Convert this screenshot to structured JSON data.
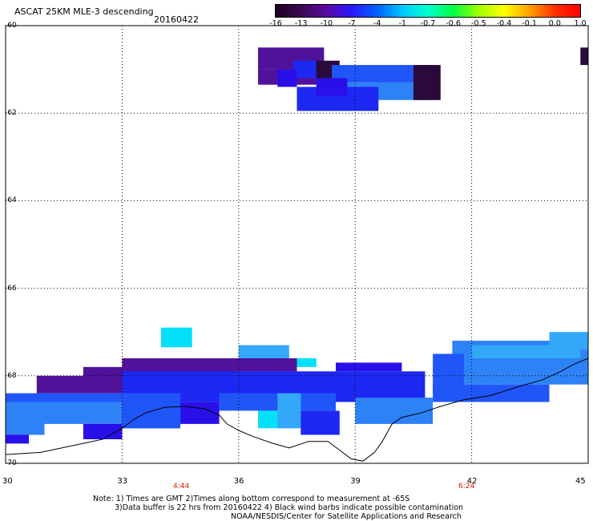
{
  "header": {
    "title": "ASCAT 25KM MLE-3 descending",
    "date": "20160422"
  },
  "colorbar": {
    "labels": [
      "-16",
      "-13",
      "-10",
      "-7",
      "-4",
      "-1",
      "-0.7",
      "-0.6",
      "-0.5",
      "-0.4",
      "-0.1",
      "0.0",
      "1.0"
    ],
    "colors": [
      "#1a0020",
      "#3a0a55",
      "#5a0aa0",
      "#2a18ff",
      "#0060ff",
      "#00c8ff",
      "#00ffd0",
      "#00ff40",
      "#a0ff00",
      "#ffff00",
      "#ffa000",
      "#ff3000",
      "#ff0000"
    ]
  },
  "axes": {
    "y_labels": [
      "-60",
      "-62",
      "-64",
      "-66",
      "-68",
      "-70"
    ],
    "x_labels": [
      "30",
      "33",
      "36",
      "39",
      "42",
      "45"
    ]
  },
  "times": [
    "4:44",
    "6:24"
  ],
  "notes": {
    "line1": "Note: 1) Times are GMT 2)Times along bottom correspond to measurement at -65S",
    "line2": "3)Data buffer is 22 hrs from 20160422 4) Black wind barbs indicate possible contamination",
    "line3": "NOAA/NESDIS/Center for Satellite Applications and Research"
  },
  "map_data": {
    "projection": "lon-lat grid",
    "lon_range": [
      30,
      45
    ],
    "lat_range": [
      -70,
      -60
    ],
    "palette": {
      "d": "#2a0a3c",
      "p": "#50129a",
      "v": "#2a10e8",
      "b": "#1d28f2",
      "m": "#2056f8",
      "s": "#2d82f6",
      "l": "#33a8f8",
      "c": "#05e0fa"
    },
    "regions": [
      {
        "lon": [
          36.5,
          38.2
        ],
        "lat": [
          -61.0,
          -60.5
        ],
        "v": "p"
      },
      {
        "lon": [
          36.5,
          38.6
        ],
        "lat": [
          -61.35,
          -61.0
        ],
        "v": "p"
      },
      {
        "lon": [
          37.4,
          38.0
        ],
        "lat": [
          -61.2,
          -60.8
        ],
        "v": "b"
      },
      {
        "lon": [
          37.0,
          37.5
        ],
        "lat": [
          -61.4,
          -61.0
        ],
        "v": "v"
      },
      {
        "lon": [
          38.0,
          38.6
        ],
        "lat": [
          -61.2,
          -60.8
        ],
        "v": "d"
      },
      {
        "lon": [
          38.4,
          41.0
        ],
        "lat": [
          -61.3,
          -60.9
        ],
        "v": "m"
      },
      {
        "lon": [
          38.8,
          41.0
        ],
        "lat": [
          -61.7,
          -61.3
        ],
        "v": "s"
      },
      {
        "lon": [
          37.5,
          39.6
        ],
        "lat": [
          -61.95,
          -61.4
        ],
        "v": "b"
      },
      {
        "lon": [
          38.0,
          38.8
        ],
        "lat": [
          -61.6,
          -61.2
        ],
        "v": "v"
      },
      {
        "lon": [
          40.5,
          41.2
        ],
        "lat": [
          -61.7,
          -60.9
        ],
        "v": "d"
      },
      {
        "lon": [
          44.8,
          45.0
        ],
        "lat": [
          -60.9,
          -60.5
        ],
        "v": "d"
      },
      {
        "lon": [
          34.0,
          34.8
        ],
        "lat": [
          -67.35,
          -66.9
        ],
        "v": "c"
      },
      {
        "lon": [
          36.0,
          37.3
        ],
        "lat": [
          -67.6,
          -67.3
        ],
        "v": "l"
      },
      {
        "lon": [
          37.0,
          38.0
        ],
        "lat": [
          -67.8,
          -67.6
        ],
        "v": "c"
      },
      {
        "lon": [
          41.5,
          45.0
        ],
        "lat": [
          -68.2,
          -67.2
        ],
        "v": "s"
      },
      {
        "lon": [
          44.0,
          45.0
        ],
        "lat": [
          -67.4,
          -67.0
        ],
        "v": "l"
      },
      {
        "lon": [
          42.0,
          44.8
        ],
        "lat": [
          -67.6,
          -67.3
        ],
        "v": "l"
      },
      {
        "lon": [
          41.0,
          41.8
        ],
        "lat": [
          -68.4,
          -67.5
        ],
        "v": "m"
      },
      {
        "lon": [
          33.0,
          37.5
        ],
        "lat": [
          -67.9,
          -67.6
        ],
        "v": "p"
      },
      {
        "lon": [
          32.0,
          36.0
        ],
        "lat": [
          -68.2,
          -67.8
        ],
        "v": "p"
      },
      {
        "lon": [
          30.8,
          33.0
        ],
        "lat": [
          -68.4,
          -68.0
        ],
        "v": "p"
      },
      {
        "lon": [
          33.0,
          40.8
        ],
        "lat": [
          -68.6,
          -67.9
        ],
        "v": "b"
      },
      {
        "lon": [
          38.5,
          40.2
        ],
        "lat": [
          -67.9,
          -67.7
        ],
        "v": "v"
      },
      {
        "lon": [
          30.0,
          34.5
        ],
        "lat": [
          -68.9,
          -68.4
        ],
        "v": "m"
      },
      {
        "lon": [
          30.0,
          31.0
        ],
        "lat": [
          -69.35,
          -68.6
        ],
        "v": "s"
      },
      {
        "lon": [
          31.0,
          33.0
        ],
        "lat": [
          -69.1,
          -68.6
        ],
        "v": "s"
      },
      {
        "lon": [
          33.0,
          35.5
        ],
        "lat": [
          -69.1,
          -68.6
        ],
        "v": "v"
      },
      {
        "lon": [
          35.5,
          38.5
        ],
        "lat": [
          -68.8,
          -68.4
        ],
        "v": "m"
      },
      {
        "lon": [
          36.5,
          37.5
        ],
        "lat": [
          -69.2,
          -68.8
        ],
        "v": "c"
      },
      {
        "lon": [
          37.0,
          37.6
        ],
        "lat": [
          -69.2,
          -68.4
        ],
        "v": "l"
      },
      {
        "lon": [
          37.6,
          38.6
        ],
        "lat": [
          -69.35,
          -68.8
        ],
        "v": "b"
      },
      {
        "lon": [
          39.0,
          41.0
        ],
        "lat": [
          -69.1,
          -68.5
        ],
        "v": "s"
      },
      {
        "lon": [
          41.0,
          44.0
        ],
        "lat": [
          -68.6,
          -68.2
        ],
        "v": "m"
      },
      {
        "lon": [
          30.0,
          30.6
        ],
        "lat": [
          -69.55,
          -69.35
        ],
        "v": "v"
      },
      {
        "lon": [
          32.0,
          33.0
        ],
        "lat": [
          -69.45,
          -69.1
        ],
        "v": "v"
      },
      {
        "lon": [
          33.0,
          34.5
        ],
        "lat": [
          -69.2,
          -68.6
        ],
        "v": "m"
      }
    ],
    "coastline_lonlat": [
      [
        30.0,
        -69.8
      ],
      [
        30.9,
        -69.75
      ],
      [
        31.7,
        -69.6
      ],
      [
        32.5,
        -69.45
      ],
      [
        33.0,
        -69.2
      ],
      [
        33.3,
        -69.0
      ],
      [
        33.6,
        -68.85
      ],
      [
        34.1,
        -68.72
      ],
      [
        34.6,
        -68.7
      ],
      [
        35.1,
        -68.75
      ],
      [
        35.5,
        -68.9
      ],
      [
        35.7,
        -69.1
      ],
      [
        36.0,
        -69.25
      ],
      [
        36.4,
        -69.4
      ],
      [
        36.9,
        -69.55
      ],
      [
        37.3,
        -69.65
      ],
      [
        37.8,
        -69.5
      ],
      [
        38.3,
        -69.5
      ],
      [
        38.6,
        -69.7
      ],
      [
        38.9,
        -69.9
      ],
      [
        39.2,
        -69.95
      ],
      [
        39.5,
        -69.75
      ],
      [
        39.7,
        -69.5
      ],
      [
        39.95,
        -69.1
      ],
      [
        40.2,
        -68.95
      ],
      [
        40.7,
        -68.85
      ],
      [
        41.2,
        -68.7
      ],
      [
        41.8,
        -68.55
      ],
      [
        42.5,
        -68.45
      ],
      [
        43.2,
        -68.25
      ],
      [
        43.8,
        -68.1
      ],
      [
        44.3,
        -67.9
      ],
      [
        44.6,
        -67.75
      ],
      [
        45.0,
        -67.6
      ]
    ]
  }
}
